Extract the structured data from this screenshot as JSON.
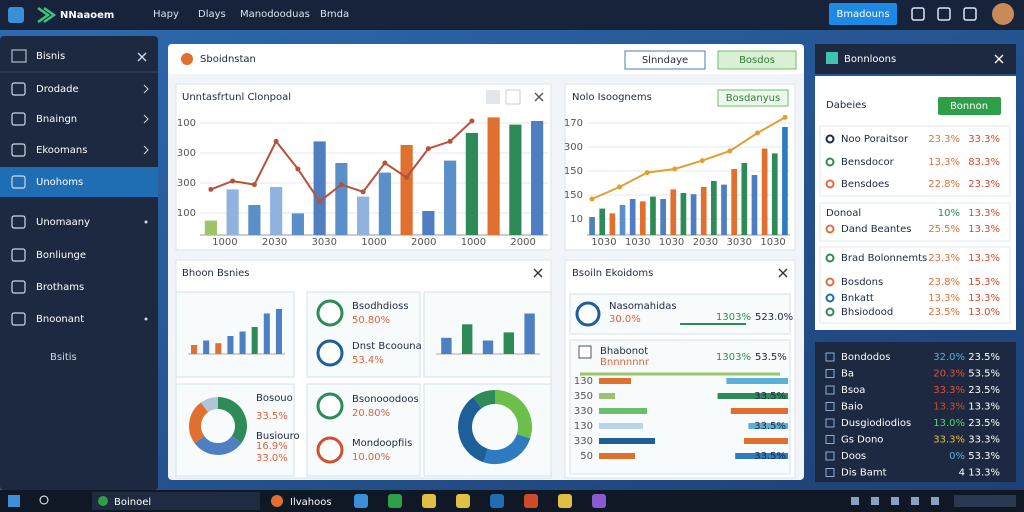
{
  "topbar": {
    "brand": "NNaaoem",
    "menu": [
      "Hapy",
      "Dlays",
      "Manodooduas",
      "Bmda"
    ],
    "button": "Bmadouns"
  },
  "sidebar": {
    "title": "Bisnis",
    "items": [
      "Drodade",
      "Bnaingn",
      "Ekoomans",
      "Unohoms",
      "Unomaany",
      "Bonliunge",
      "Brothams",
      "Bnoonant"
    ],
    "footer": "Bsitis"
  },
  "main": {
    "title": "Sboidnstan",
    "buttons": [
      "Slnndaye",
      "Bosdos"
    ]
  },
  "chart_a": {
    "type": "bar",
    "title": "Unntasfrtunl Clonpoal",
    "ylabels": [
      "100",
      "300",
      "300",
      "100"
    ],
    "xlabels": [
      "1000",
      "2030",
      "3030",
      "1000",
      "2000",
      "1000",
      "2000"
    ],
    "ylim": [
      0,
      100
    ],
    "bars": [
      12,
      38,
      25,
      40,
      18,
      78,
      60,
      32,
      52,
      75,
      20,
      62,
      85,
      98,
      92,
      95
    ],
    "bar_colors": [
      "#9dc46a",
      "#8fb3de",
      "#5b8fc9",
      "#8fb3de",
      "#5b8fc9",
      "#4f7fc0",
      "#5b8fc9",
      "#8fb3de",
      "#5b8fc9",
      "#e07030",
      "#4f7fc0",
      "#5b8fc9",
      "#2e8b57",
      "#e07030",
      "#2e8b57",
      "#4f7fc0"
    ],
    "line": [
      38,
      45,
      42,
      78,
      55,
      28,
      42,
      36,
      60,
      48,
      72,
      78,
      95
    ],
    "line_color": "#b5523b"
  },
  "chart_b": {
    "type": "bar",
    "title": "Nolo Isoognems",
    "button": "Bosdanyus",
    "ylabels": [
      "170",
      "300",
      "150",
      "150",
      "10"
    ],
    "xlabels": [
      "1030",
      "1030",
      "1030",
      "2030",
      "3030",
      "1030"
    ],
    "ylim": [
      0,
      100
    ],
    "bars": [
      15,
      22,
      18,
      25,
      30,
      28,
      32,
      30,
      38,
      35,
      34,
      40,
      45,
      42,
      55,
      60,
      50,
      72,
      68,
      90
    ],
    "bar_colors": [
      "#4f7fc0",
      "#2e8b57",
      "#e07030",
      "#5b8fc9",
      "#4f7fc0",
      "#e07030",
      "#2e8b57",
      "#4f7fc0",
      "#e07030",
      "#2e8b57",
      "#4f7fc0",
      "#e07030",
      "#2e8b57",
      "#4f7fc0",
      "#e07030",
      "#2e8b57",
      "#4f7fc0",
      "#e07030",
      "#2e8b57",
      "#2e7bc0"
    ],
    "line": [
      30,
      40,
      52,
      55,
      62,
      70,
      85,
      98
    ],
    "line_color": "#e0a030"
  },
  "panel_c": {
    "title": "Bhoon Bsnies",
    "mini_bars_1": {
      "values": [
        10,
        15,
        12,
        20,
        25,
        30,
        45,
        50
      ],
      "colors": [
        "#e07030",
        "#4f7fc0",
        "#e07030",
        "#4f7fc0",
        "#4f7fc0",
        "#2e8b57",
        "#4f7fc0",
        "#4f7fc0"
      ],
      "ylim": [
        0,
        60
      ]
    },
    "stats_1": [
      {
        "label": "Bsodhdioss",
        "value": "50.80%"
      },
      {
        "label": "Dnst Bcoouna",
        "value": "53.4%"
      }
    ],
    "mini_bars_2": {
      "values": [
        30,
        55,
        25,
        40,
        75
      ],
      "colors": [
        "#4f7fc0",
        "#2e8b57",
        "#4f7fc0",
        "#2e8b57",
        "#4f7fc0"
      ],
      "ylim": [
        0,
        100
      ]
    },
    "donut_1": {
      "values": [
        35,
        30,
        25,
        10
      ],
      "colors": [
        "#2e8b57",
        "#4f7fc0",
        "#e07030",
        "#b0c4d8"
      ]
    },
    "donut_1_labels": [
      "Bosouo",
      "33.5%",
      "Busiouro",
      "16.9%",
      "33.0%"
    ],
    "stats_2": [
      {
        "label": "Bsonooodoos",
        "value": "20.80%"
      },
      {
        "label": "Mondoopfiis",
        "value": "10.00%"
      }
    ],
    "donut_2": {
      "values": [
        30,
        25,
        35,
        10
      ],
      "colors": [
        "#6cbf4a",
        "#2e7bc0",
        "#1f5f99",
        "#2e8b57"
      ]
    }
  },
  "panel_d": {
    "title": "Bsoiln Ekoidoms",
    "rows": [
      {
        "label": "Nasomahidas",
        "sub": "30.0%",
        "a": "1303%",
        "b": "523.0%"
      },
      {
        "label": "Bhabonot",
        "sub": "Bnnnnnnr",
        "a": "1303%",
        "b": "53.5%"
      }
    ],
    "hbar_labels": [
      "130",
      "350",
      "330",
      "130",
      "330",
      "50"
    ],
    "hbars_left": [
      40,
      20,
      60,
      55,
      70,
      45
    ],
    "left_colors": [
      "#e07030",
      "#9dc46a",
      "#6cbf6a",
      "#b8d4e8",
      "#1f5f99",
      "#e07030"
    ],
    "hbars_right": [
      70,
      80,
      65,
      45,
      50,
      60
    ],
    "right_colors": [
      "#5bb0d8",
      "#2e8b57",
      "#e07030",
      "#5bb0d8",
      "#e07030",
      "#2e7bc0"
    ],
    "xlim": [
      0,
      100
    ],
    "note_labels": [
      "33.5%",
      "33.5%",
      "33.5%"
    ]
  },
  "right_panel": {
    "title": "Bonnloons",
    "subtitle": "Dabeies",
    "button": "Bonnon",
    "group_1": [
      [
        "Noo Poraitsor",
        "23.3%",
        "33.3%"
      ],
      [
        "Bensdocor",
        "13.3%",
        "83.3%"
      ],
      [
        "Bensdoes",
        "22.8%",
        "23.3%"
      ]
    ],
    "group_2": {
      "title": "Donoal",
      "a": "10%",
      "b": "13.3%",
      "rows": [
        [
          "Dand Beantes",
          "25.5%",
          "13.3%"
        ]
      ]
    },
    "group_3": [
      [
        "Brad Bolonnemts",
        "23.3%",
        "13.3%"
      ],
      [
        "Bosdons",
        "23.8%",
        "15.3%"
      ],
      [
        "Bnkatt",
        "13.3%",
        "13.3%"
      ],
      [
        "Bhsiodood",
        "23.5%",
        "13.0%"
      ]
    ]
  },
  "dark_list": [
    [
      "Bondodos",
      "32.0%",
      "23.5%"
    ],
    [
      "Ba",
      "20.3%",
      "53.5%"
    ],
    [
      "Bsoa",
      "33.3%",
      "23.5%"
    ],
    [
      "Baio",
      "13.3%",
      "13.3%"
    ],
    [
      "Dusgiodiodios",
      "13.0%",
      "23.5%"
    ],
    [
      "Gs Dono",
      "33.3%",
      "33.3%"
    ],
    [
      "Doos",
      "0%",
      "53.3%"
    ],
    [
      "Dis Bamt",
      "4",
      "13.3%"
    ]
  ],
  "taskbar": {
    "items": [
      "Boinoel",
      "Ilvahoos"
    ]
  }
}
